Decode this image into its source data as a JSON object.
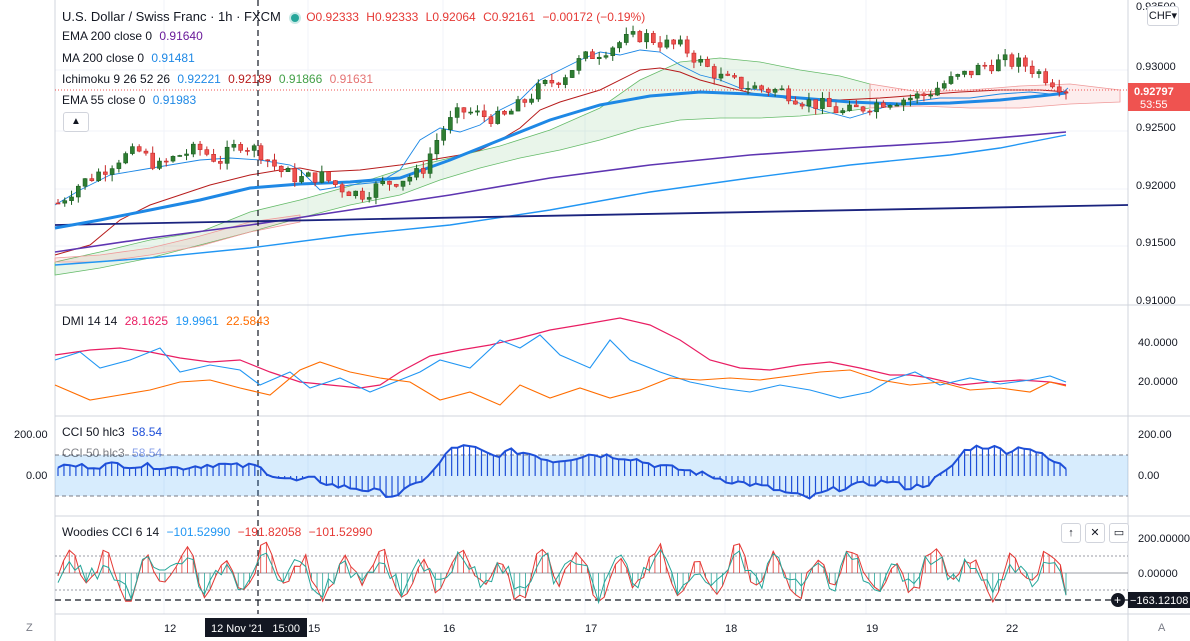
{
  "header": {
    "symbol": "U.S. Dollar / Swiss Franc · 1h · FXCM",
    "ohlc": {
      "o": "O0.92333",
      "h": "H0.92333",
      "l": "L0.92064",
      "c": "C0.92161",
      "chg": "−0.00172 (−0.19%)"
    },
    "indicators": [
      {
        "label": "EMA 200 close 0",
        "values": [
          "0.91640"
        ],
        "colors": [
          "#6a1b9a"
        ]
      },
      {
        "label": "MA 200 close 0",
        "values": [
          "0.91481"
        ],
        "colors": [
          "#1e88e5"
        ]
      },
      {
        "label": "Ichimoku 9 26 52 26",
        "values": [
          "0.92221",
          "0.92189",
          "0.91866",
          "0.91631"
        ],
        "colors": [
          "#1e88e5",
          "#b71c1c",
          "#43a047",
          "#e57373"
        ]
      },
      {
        "label": "EMA 55 close 0",
        "values": [
          "0.91983"
        ],
        "colors": [
          "#1e88e5"
        ]
      }
    ],
    "currency_button": "CHF"
  },
  "price_axis": {
    "ticks": [
      "0.93500",
      "0.93000",
      "0.92500",
      "0.92000",
      "0.91500",
      "0.91000"
    ],
    "last_price": "0.92797",
    "countdown": "53:55",
    "top_partial": "0.93500"
  },
  "dmi": {
    "label": "DMI 14 14",
    "values": [
      "28.1625",
      "19.9961",
      "22.5843"
    ],
    "colors": [
      "#e91e63",
      "#2196f3",
      "#ff6d00"
    ],
    "ticks": [
      "40.0000",
      "20.0000"
    ]
  },
  "cci": {
    "label": "CCI 50 hlc3",
    "value": "58.54",
    "ghost_label": "CCI 50 hlc3",
    "ghost_value": "58.54",
    "left_ticks": [
      "200.00",
      "0.00"
    ],
    "right_ticks": [
      "200.00",
      "0.00"
    ]
  },
  "woodies": {
    "label": "Woodies CCI 6 14",
    "values": [
      "−101.52990",
      "−191.82058",
      "−101.52990"
    ],
    "colors": [
      "#2196f3",
      "#e53935",
      "#e53935"
    ],
    "ticks": [
      "200.00000",
      "0.00000"
    ],
    "crosshair_value": "−163.12108"
  },
  "time_axis": {
    "labels": [
      "12",
      "15",
      "16",
      "17",
      "18",
      "19",
      "22"
    ],
    "crosshair_label": "12 Nov '21   15:00"
  },
  "bottom": {
    "left_icon": "Z",
    "right_icon": "A"
  },
  "chart_data": {
    "type": "candlestick",
    "title": "U.S. Dollar / Swiss Franc · 1h · FXCM",
    "x_label_days": [
      "12",
      "15",
      "16",
      "17",
      "18",
      "19",
      "22"
    ],
    "ylim": [
      0.91,
      0.935
    ],
    "close_series": [
      0.9185,
      0.92,
      0.921,
      0.9222,
      0.9228,
      0.9215,
      0.9225,
      0.923,
      0.922,
      0.9235,
      0.9228,
      0.9212,
      0.9205,
      0.9208,
      0.9198,
      0.9192,
      0.92,
      0.9205,
      0.921,
      0.9245,
      0.9262,
      0.9258,
      0.9255,
      0.9268,
      0.9282,
      0.929,
      0.9305,
      0.9312,
      0.932,
      0.9325,
      0.9318,
      0.9315,
      0.93,
      0.9288,
      0.9283,
      0.928,
      0.9278,
      0.927,
      0.9266,
      0.926,
      0.9265,
      0.927,
      0.9272,
      0.9275,
      0.9285,
      0.9292,
      0.93,
      0.9303,
      0.93,
      0.929,
      0.928
    ],
    "ema55_series": [
      0.916,
      0.9165,
      0.9175,
      0.9185,
      0.919,
      0.9195,
      0.92,
      0.9203,
      0.9205,
      0.9207,
      0.921,
      0.9215,
      0.9225,
      0.9238,
      0.9252,
      0.9263,
      0.9272,
      0.9278,
      0.9281,
      0.9282,
      0.928,
      0.9279,
      0.9278,
      0.9278,
      0.9278,
      0.928,
      0.9282,
      0.9283
    ],
    "ema200_series": [
      0.9152,
      0.9155,
      0.916,
      0.9165,
      0.917,
      0.9176,
      0.9182,
      0.9188,
      0.9195,
      0.9203,
      0.921,
      0.9217,
      0.9222,
      0.9225,
      0.9227,
      0.923,
      0.9233,
      0.9238,
      0.9242
    ],
    "ma200_series": [
      0.9135,
      0.9137,
      0.914,
      0.9144,
      0.9148,
      0.9154,
      0.9162,
      0.9172,
      0.9182,
      0.9194,
      0.9205,
      0.9215,
      0.9224,
      0.9232,
      0.9238
    ],
    "trendline": [
      0.917,
      0.9185
    ],
    "dmi_plus": [
      28.2
    ],
    "dmi_minus": [
      20.0
    ],
    "adx": [
      22.6
    ],
    "cci_last": 58.54
  }
}
